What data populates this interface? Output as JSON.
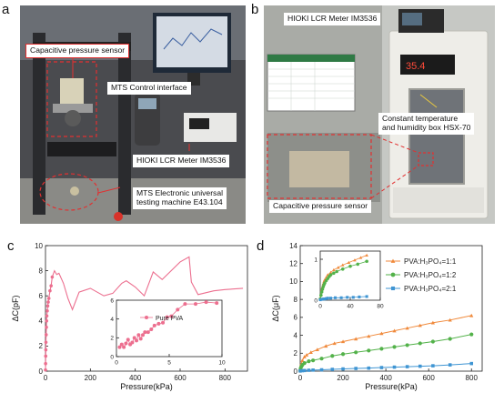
{
  "panels": {
    "a": {
      "letter": "a",
      "labels": {
        "sensor": "Capacitive pressure sensor",
        "mts_interface": "MTS Control interface",
        "lcr": "HIOKI  LCR Meter IM3536",
        "machine_line1": "MTS Electronic universal",
        "machine_line2": "testing machine  E43.104"
      }
    },
    "b": {
      "letter": "b",
      "labels": {
        "lcr": "HIOKI  LCR Meter IM3536",
        "box_line1": "Constant temperature",
        "box_line2": "and humidity box HSX-70",
        "sensor": "Capacitive pressure sensor"
      },
      "display_readout": "35.4"
    },
    "c": {
      "letter": "c"
    },
    "d": {
      "letter": "d"
    }
  },
  "colors": {
    "pink": "#ec6f8f",
    "orange": "#f08a3c",
    "green": "#53b24a",
    "blue": "#3f95d3",
    "red_callout": "#e23030"
  },
  "chart_data": [
    {
      "id": "c-main",
      "type": "line",
      "xlabel": "Pressure(kPa)",
      "ylabel": "ΔC(pF)",
      "xlim": [
        0,
        900
      ],
      "ylim": [
        0,
        10
      ],
      "xticks": [
        0,
        200,
        400,
        600,
        800
      ],
      "yticks": [
        0,
        2,
        4,
        6,
        8,
        10
      ],
      "series": [
        {
          "color": "#ec6f8f",
          "x": [
            0,
            0.5,
            1,
            1.5,
            2,
            3,
            4,
            5,
            6,
            8,
            10,
            12,
            15,
            20,
            25,
            30,
            40,
            50,
            60,
            80,
            100,
            120,
            150,
            200,
            260,
            300,
            340,
            360,
            400,
            440,
            480,
            520,
            560,
            600,
            640,
            650,
            680,
            750,
            800,
            880
          ],
          "y": [
            0.1,
            0.6,
            1.2,
            1.7,
            2.3,
            2.9,
            3.5,
            4.0,
            4.4,
            4.8,
            5.2,
            5.5,
            5.8,
            6.4,
            6.8,
            7.5,
            8.0,
            7.7,
            7.8,
            7.0,
            5.8,
            4.9,
            6.3,
            6.6,
            6.0,
            6.2,
            7.0,
            7.2,
            6.7,
            6.0,
            7.9,
            7.3,
            8.0,
            8.7,
            9.1,
            7.1,
            6.1,
            6.4,
            6.5,
            6.6
          ]
        }
      ],
      "inset": {
        "type": "line",
        "xlim": [
          0,
          10
        ],
        "ylim": [
          0,
          6
        ],
        "xticks": [
          0,
          5,
          10
        ],
        "yticks": [
          0,
          2,
          4,
          6
        ],
        "legend": "Pure PVA",
        "series": [
          {
            "color": "#ec6f8f",
            "x": [
              0.3,
              0.5,
              0.7,
              0.9,
              1.1,
              1.3,
              1.5,
              1.7,
              1.9,
              2.1,
              2.3,
              2.5,
              2.7,
              3.0,
              3.3,
              3.6,
              4.0,
              4.4,
              4.8,
              5.2,
              5.8,
              6.5,
              7.5,
              8.5,
              9.5
            ],
            "y": [
              1.0,
              1.3,
              1.0,
              1.4,
              1.8,
              1.3,
              1.5,
              2.0,
              1.7,
              2.3,
              1.9,
              2.3,
              2.6,
              2.6,
              2.9,
              3.3,
              3.5,
              3.6,
              4.2,
              4.3,
              5.0,
              5.6,
              5.6,
              5.8,
              5.7
            ]
          }
        ]
      }
    },
    {
      "id": "d-main",
      "type": "line",
      "xlabel": "Pressure(kPa)",
      "ylabel": "ΔC(μF)",
      "xlim": [
        0,
        850
      ],
      "ylim": [
        0,
        14
      ],
      "xticks": [
        0,
        200,
        400,
        600,
        800
      ],
      "yticks": [
        0,
        2,
        4,
        6,
        8,
        10,
        12,
        14
      ],
      "legend_labels": [
        "PVA:H₃PO₄=1:1",
        "PVA:H₃PO₄=1:2",
        "PVA:H₃PO₄=2:1"
      ],
      "series": [
        {
          "name": "PVA:H₃PO₄=1:1",
          "color": "#f08a3c",
          "marker": "triangle",
          "x": [
            0,
            2,
            5,
            10,
            20,
            30,
            50,
            80,
            120,
            160,
            200,
            260,
            320,
            380,
            440,
            500,
            560,
            620,
            700,
            800
          ],
          "y": [
            0.1,
            0.4,
            0.8,
            1.2,
            1.6,
            1.8,
            2.1,
            2.4,
            2.8,
            3.1,
            3.3,
            3.6,
            3.9,
            4.2,
            4.5,
            4.8,
            5.1,
            5.4,
            5.7,
            6.2
          ]
        },
        {
          "name": "PVA:H₃PO₄=1:2",
          "color": "#53b24a",
          "marker": "circle",
          "x": [
            0,
            2,
            5,
            10,
            20,
            40,
            60,
            100,
            150,
            200,
            260,
            320,
            380,
            440,
            500,
            560,
            620,
            700,
            800
          ],
          "y": [
            0.05,
            0.3,
            0.5,
            0.7,
            0.9,
            1.1,
            1.2,
            1.4,
            1.7,
            1.9,
            2.1,
            2.3,
            2.5,
            2.7,
            2.9,
            3.1,
            3.3,
            3.6,
            4.1
          ]
        },
        {
          "name": "PVA:H₃PO₄=2:1",
          "color": "#3f95d3",
          "marker": "square",
          "x": [
            0,
            10,
            20,
            40,
            60,
            100,
            150,
            200,
            260,
            320,
            380,
            440,
            500,
            560,
            620,
            700,
            800
          ],
          "y": [
            0.02,
            0.05,
            0.07,
            0.1,
            0.12,
            0.15,
            0.2,
            0.25,
            0.3,
            0.34,
            0.4,
            0.45,
            0.5,
            0.55,
            0.6,
            0.7,
            0.85
          ]
        }
      ],
      "inset": {
        "type": "line",
        "xlim": [
          0,
          80
        ],
        "ylim": [
          0,
          1.2
        ],
        "xticks": [
          0,
          40,
          80
        ],
        "yticks": [
          0,
          1
        ],
        "series": [
          {
            "name": "PVA:H₃PO₄=1:1",
            "color": "#f08a3c",
            "marker": "triangle",
            "x": [
              0,
              1,
              2,
              3,
              4,
              5,
              6,
              8,
              10,
              14,
              18,
              24,
              30,
              38,
              46,
              54,
              62
            ],
            "y": [
              0.05,
              0.15,
              0.25,
              0.33,
              0.4,
              0.46,
              0.5,
              0.56,
              0.62,
              0.68,
              0.74,
              0.8,
              0.86,
              0.92,
              0.98,
              1.04,
              1.1
            ]
          },
          {
            "name": "PVA:H₃PO₄=1:2",
            "color": "#53b24a",
            "marker": "circle",
            "x": [
              0,
              1,
              2,
              3,
              4,
              5,
              6,
              8,
              10,
              12,
              14,
              18,
              22,
              30,
              40,
              50,
              62
            ],
            "y": [
              0.03,
              0.12,
              0.2,
              0.27,
              0.33,
              0.38,
              0.42,
              0.48,
              0.53,
              0.58,
              0.62,
              0.66,
              0.7,
              0.76,
              0.83,
              0.88,
              0.95
            ]
          },
          {
            "name": "PVA:H₃PO₄=2:1",
            "color": "#3f95d3",
            "marker": "square",
            "x": [
              0,
              2,
              4,
              6,
              8,
              10,
              14,
              20,
              28,
              36,
              44,
              52,
              62
            ],
            "y": [
              0.01,
              0.02,
              0.03,
              0.03,
              0.04,
              0.05,
              0.05,
              0.06,
              0.06,
              0.07,
              0.07,
              0.08,
              0.09
            ]
          }
        ]
      }
    }
  ]
}
